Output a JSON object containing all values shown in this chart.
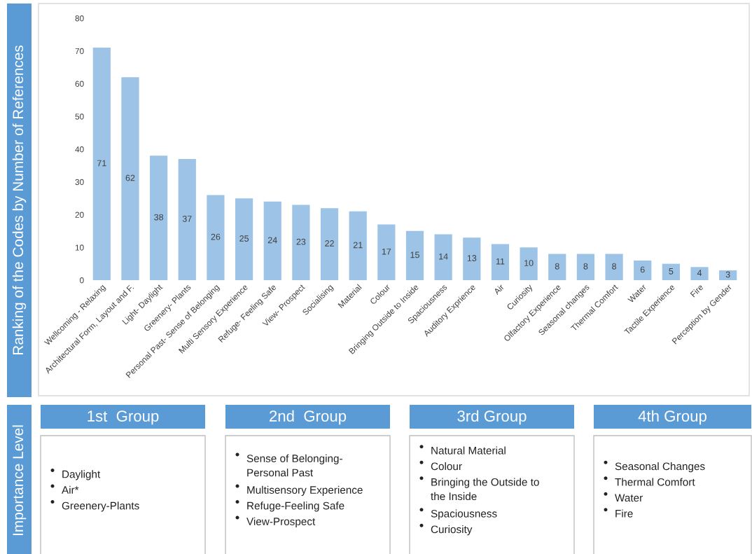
{
  "chart_data": [
    {
      "type": "bar",
      "ylabel": "Ranking of the Codes by Number of References",
      "categories": [
        "Wellcoming - Relaxing",
        "Architectural Form, Layout and F.",
        "Light- Daylight",
        "Greenery- Plants",
        "Personal Past- Sense of Belonging",
        "Multi Sensory Experience",
        "Refuge- Feeling Safe",
        "View- Prospect",
        "Socialising",
        "Material",
        "Colour",
        "Bringing Outside to Inside",
        "Spaciousness",
        "Auditory Exprience",
        "Air",
        "Curiosity",
        "Olfactory Experience",
        "Seasonal changes",
        "Thermal Comfort",
        "Water",
        "Tactile Experience",
        "Fire",
        "Perception by Gender"
      ],
      "values": [
        71,
        62,
        38,
        37,
        26,
        25,
        24,
        23,
        22,
        21,
        17,
        15,
        14,
        13,
        11,
        10,
        8,
        8,
        8,
        6,
        5,
        4,
        3
      ],
      "color": "#9dc3e6",
      "ylim": [
        0,
        80
      ],
      "yticks": [
        0,
        10,
        20,
        30,
        40,
        50,
        60,
        70,
        80
      ],
      "grid": false,
      "data_labels": true
    },
    {
      "type": "other",
      "title": "1st  Group",
      "ylabel": "Importance Level",
      "annotations": [
        "Daylight",
        "Air*",
        "Greenery-Plants"
      ]
    },
    {
      "type": "other",
      "title": "2nd  Group",
      "annotations": [
        "Sense of Belonging-\nPersonal Past",
        "Multisensory Experience",
        "Refuge-Feeling Safe",
        "View-Prospect"
      ]
    },
    {
      "type": "other",
      "title": "3rd Group",
      "annotations": [
        "Natural Material",
        "Colour",
        "Bringing the Outside to\nthe Inside",
        "Spaciousness",
        "Curiosity"
      ]
    },
    {
      "type": "other",
      "title": "4th Group",
      "annotations": [
        "Seasonal Changes",
        "Thermal Comfort",
        "Water",
        "Fire"
      ]
    }
  ]
}
